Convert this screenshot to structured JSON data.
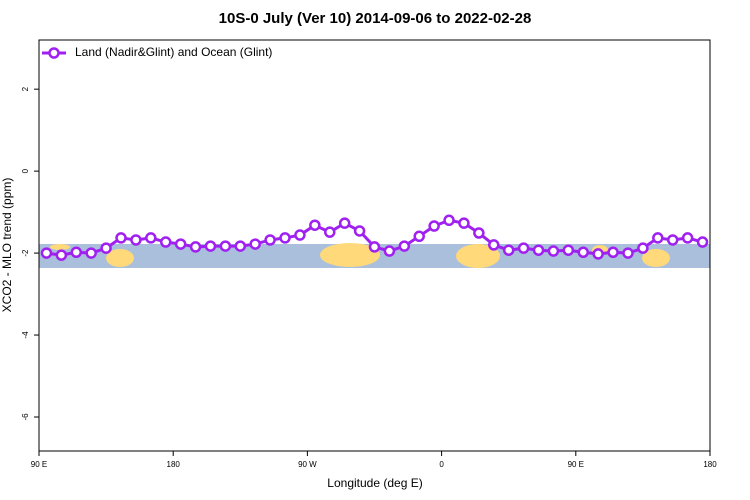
{
  "chart_data": {
    "type": "line",
    "title": "10S-0 July (Ver 10)   2014-09-06 to 2022-02-28",
    "x_label": "Longitude (deg E)",
    "y_label": "XCO2 - MLO trend (ppm)",
    "xlim": [
      90,
      540
    ],
    "ylim": [
      -6.83,
      3.2
    ],
    "xticks": [
      {
        "value": 90,
        "label": "90 E"
      },
      180,
      {
        "value": 270,
        "label": "90 W"
      },
      {
        "value": 360,
        "label": "0"
      },
      {
        "value": 450,
        "label": "90 E"
      },
      {
        "value": 540,
        "label": "180"
      }
    ],
    "yticks": [
      2,
      0,
      -2,
      -4,
      -6
    ],
    "legend": "top-left",
    "series": [
      {
        "name": "Land (Nadir&Glint) and Ocean (Glint)",
        "color": "#a020f0",
        "x": [
          95,
          105,
          115,
          125,
          135,
          145,
          155,
          165,
          175,
          185,
          195,
          205,
          215,
          225,
          235,
          245,
          255,
          265,
          275,
          285,
          295,
          305,
          315,
          325,
          335,
          345,
          355,
          365,
          375,
          385,
          395,
          405,
          415,
          425,
          435,
          445,
          455,
          465,
          475,
          485,
          495,
          505,
          515,
          525,
          535
        ],
        "values": [
          -2.0,
          -2.05,
          -1.98,
          -2.0,
          -1.88,
          -1.63,
          -1.68,
          -1.63,
          -1.73,
          -1.78,
          -1.85,
          -1.83,
          -1.83,
          -1.83,
          -1.78,
          -1.68,
          -1.63,
          -1.56,
          -1.32,
          -1.49,
          -1.27,
          -1.46,
          -1.85,
          -1.95,
          -1.83,
          -1.59,
          -1.34,
          -1.2,
          -1.27,
          -1.51,
          -1.8,
          -1.93,
          -1.88,
          -1.93,
          -1.95,
          -1.93,
          -1.98,
          -2.02,
          -1.98,
          -2.0,
          -1.88,
          -1.63,
          -1.68,
          -1.63,
          -1.73
        ]
      }
    ]
  }
}
